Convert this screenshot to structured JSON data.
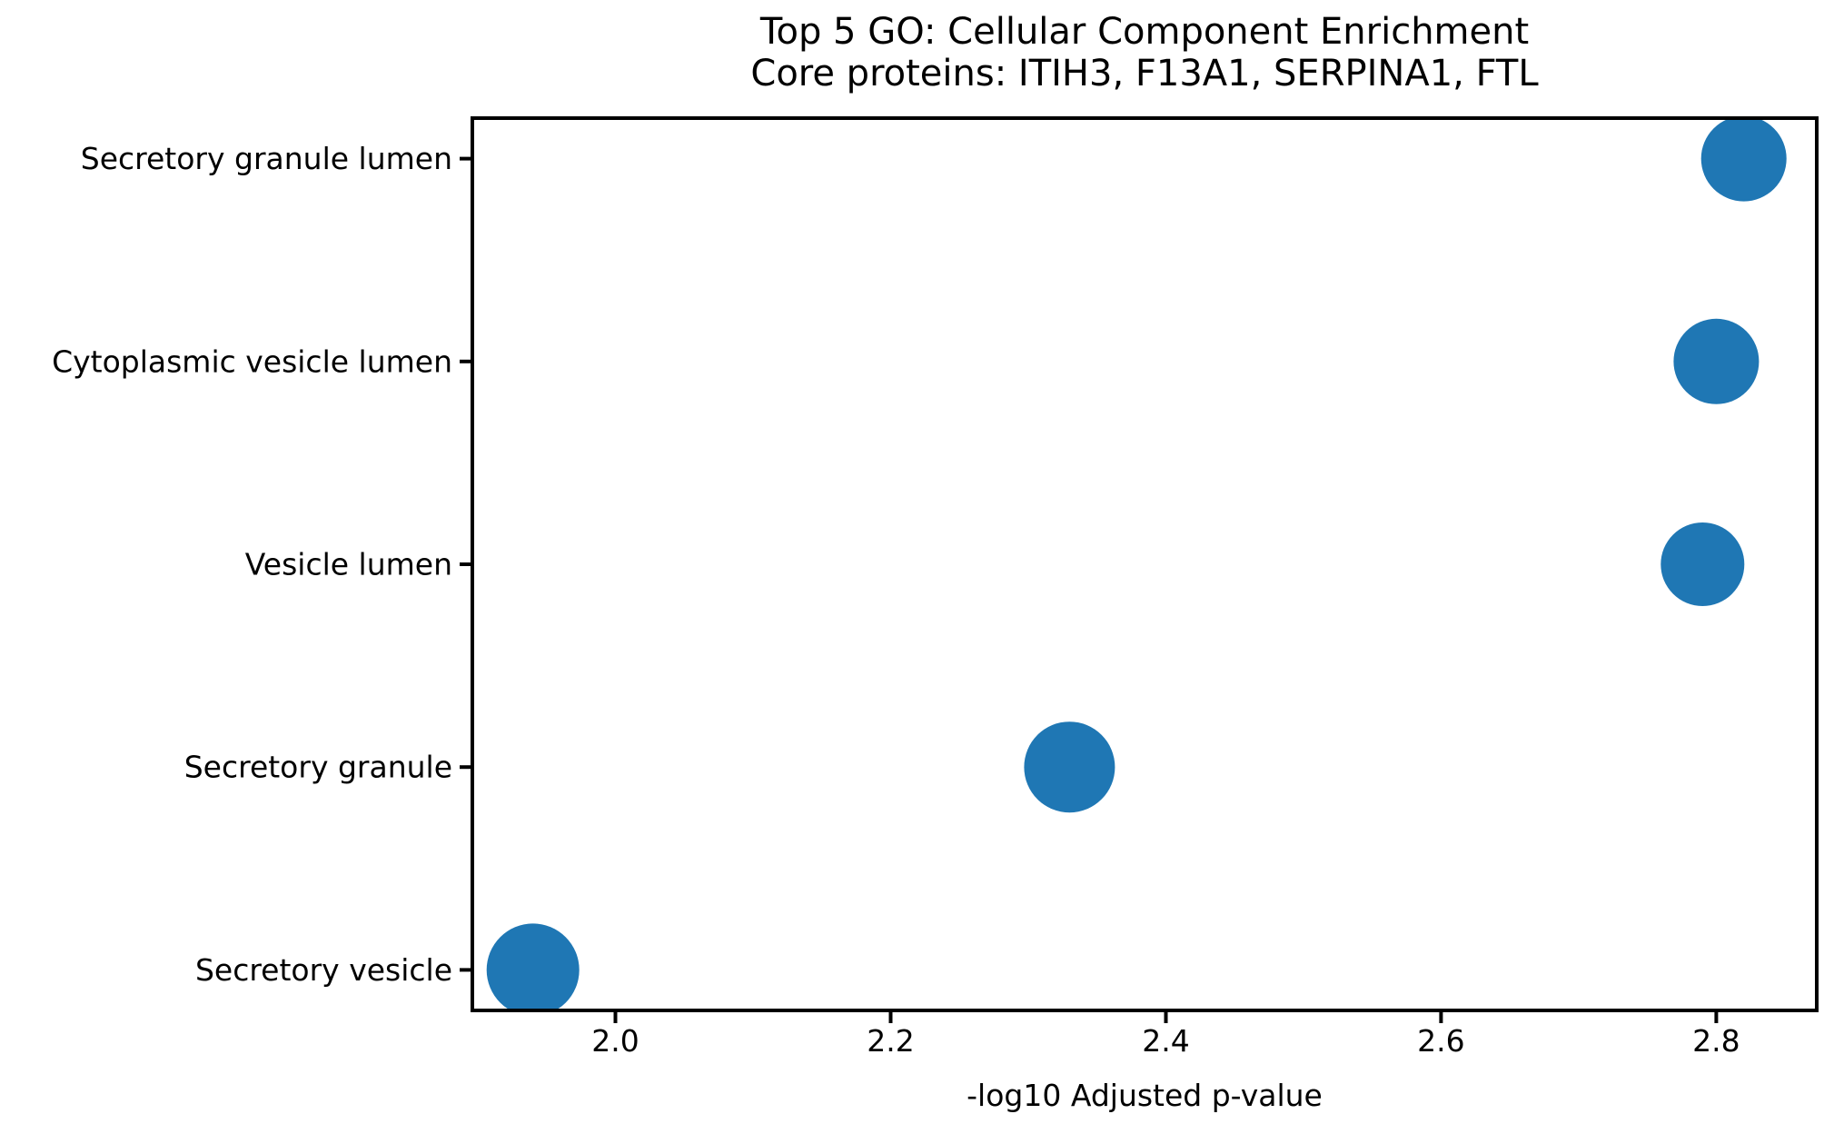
{
  "chart_data": {
    "type": "scatter",
    "title": "Top 5 GO: Cellular Component Enrichment",
    "subtitle": "Core proteins: ITIH3, F13A1, SERPINA1, FTL",
    "xlabel": "-log10 Adjusted p-value",
    "categories": [
      "Secretory granule lumen",
      "Cytoplasmic vesicle lumen",
      "Vesicle lumen",
      "Secretory granule",
      "Secretory vesicle"
    ],
    "values": [
      2.82,
      2.8,
      2.79,
      2.33,
      1.94
    ],
    "marker_radius_px": [
      47,
      47,
      46,
      50,
      51
    ],
    "xticks": [
      "2.0",
      "2.2",
      "2.4",
      "2.6",
      "2.8"
    ],
    "xtick_values": [
      2.0,
      2.2,
      2.4,
      2.6,
      2.8
    ],
    "xlim": [
      1.896,
      2.873
    ],
    "grid": false,
    "legend_position": "none",
    "marker_color": "#1f77b4",
    "axis_color": "#000000",
    "background_color": "#ffffff"
  }
}
